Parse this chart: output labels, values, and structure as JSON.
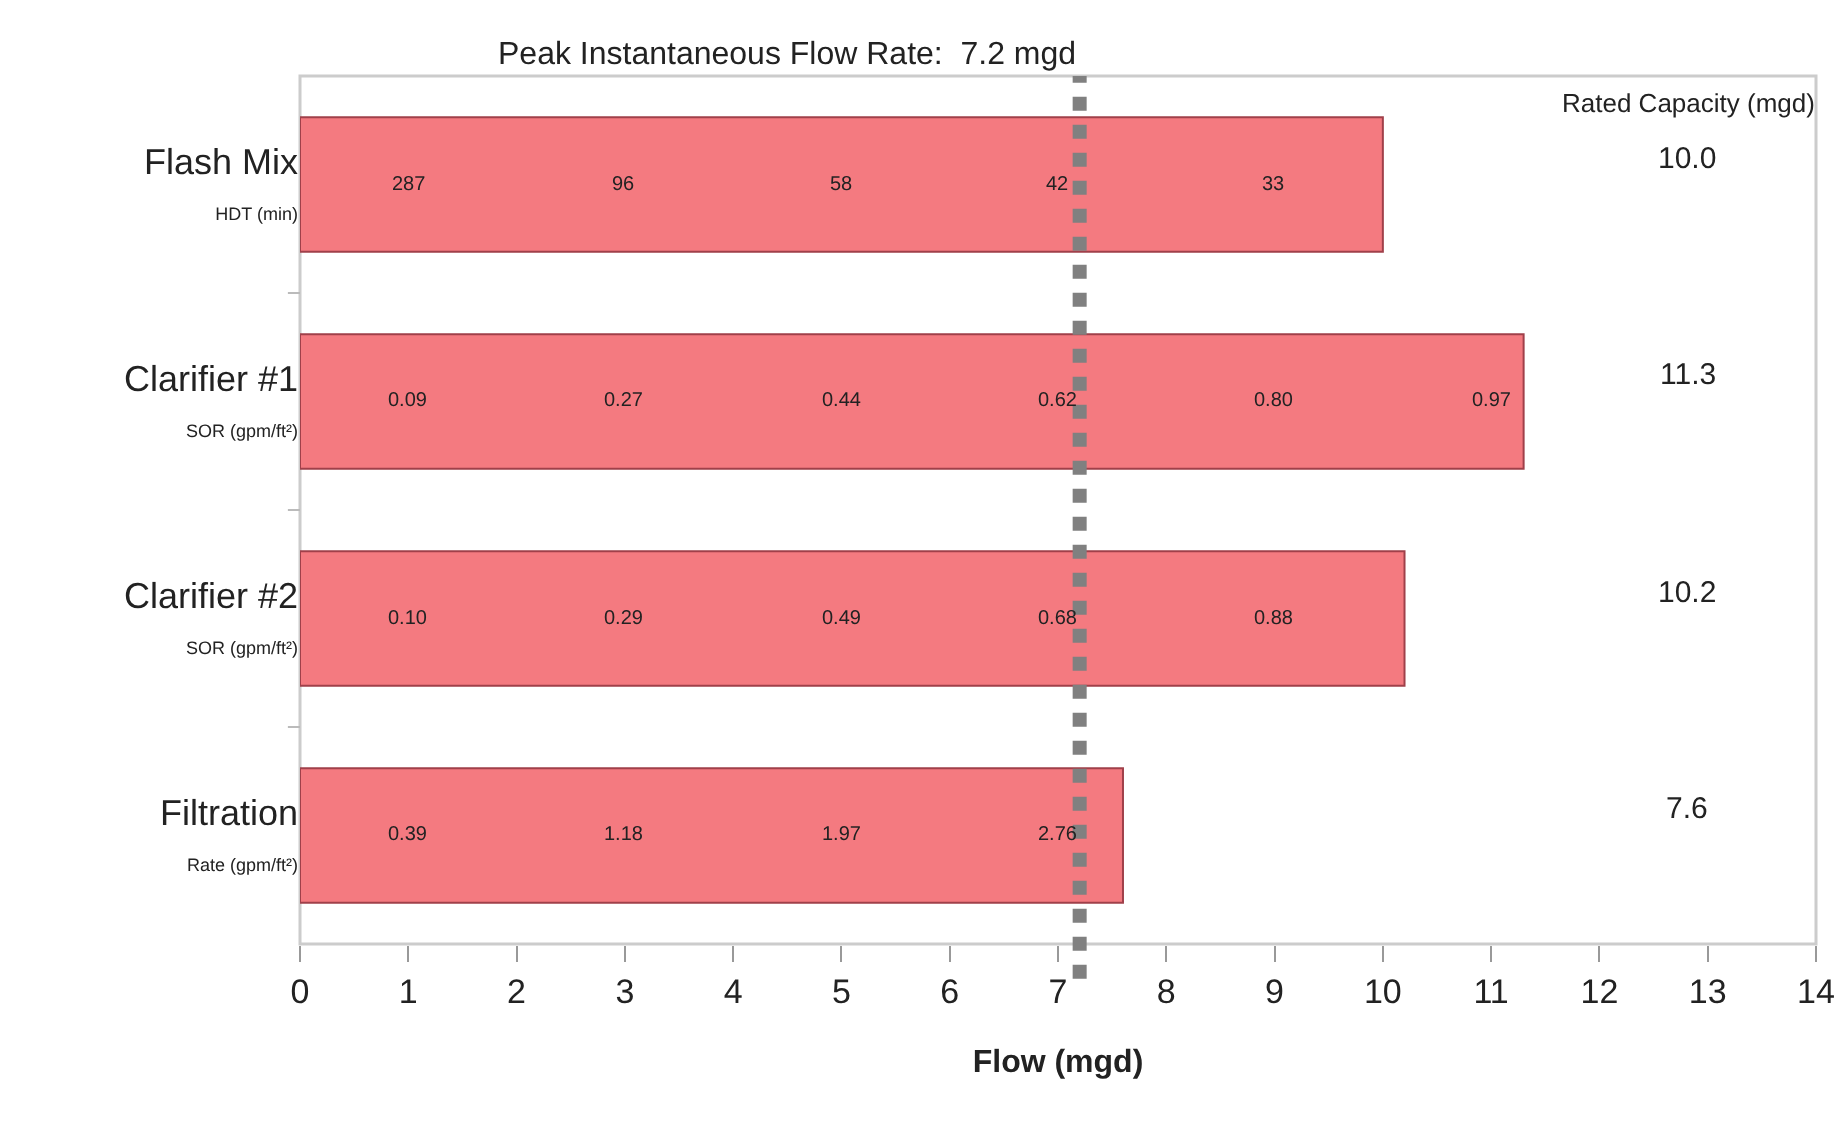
{
  "chart_data": {
    "type": "bar",
    "orientation": "horizontal",
    "categories": [
      "Flash Mix\nHDT (min)",
      "Clarifier #1\nSOR (gpm/ft²)",
      "Clarifier #2\nSOR (gpm/ft²)",
      "Filtration\nRate (gpm/ft²)"
    ],
    "values": [
      10.0,
      11.3,
      10.2,
      7.6
    ],
    "color": "#f47a80",
    "value_labels": [
      "10.0",
      "11.3",
      "10.2",
      "7.6"
    ],
    "xlabel": "Flow (mgd)",
    "xlim": [
      0,
      14
    ],
    "xticks": [
      0,
      1,
      2,
      3,
      4,
      5,
      6,
      7,
      8,
      9,
      10,
      11,
      12,
      13,
      14
    ],
    "grid": false,
    "legend": false,
    "ref_lines": [
      {
        "axis": "x",
        "value": 7.2,
        "label": "Peak Instantaneous Flow Rate:  7.2 mgd",
        "color": "#808080",
        "line_style": "dashed"
      }
    ],
    "annotations": [
      "Rated Capacity (mgd)",
      "287",
      "96",
      "58",
      "42",
      "33",
      "0.09",
      "0.27",
      "0.44",
      "0.62",
      "0.80",
      "0.97",
      "0.10",
      "0.29",
      "0.49",
      "0.68",
      "0.88",
      "0.39",
      "1.18",
      "1.97",
      "2.76"
    ]
  }
}
